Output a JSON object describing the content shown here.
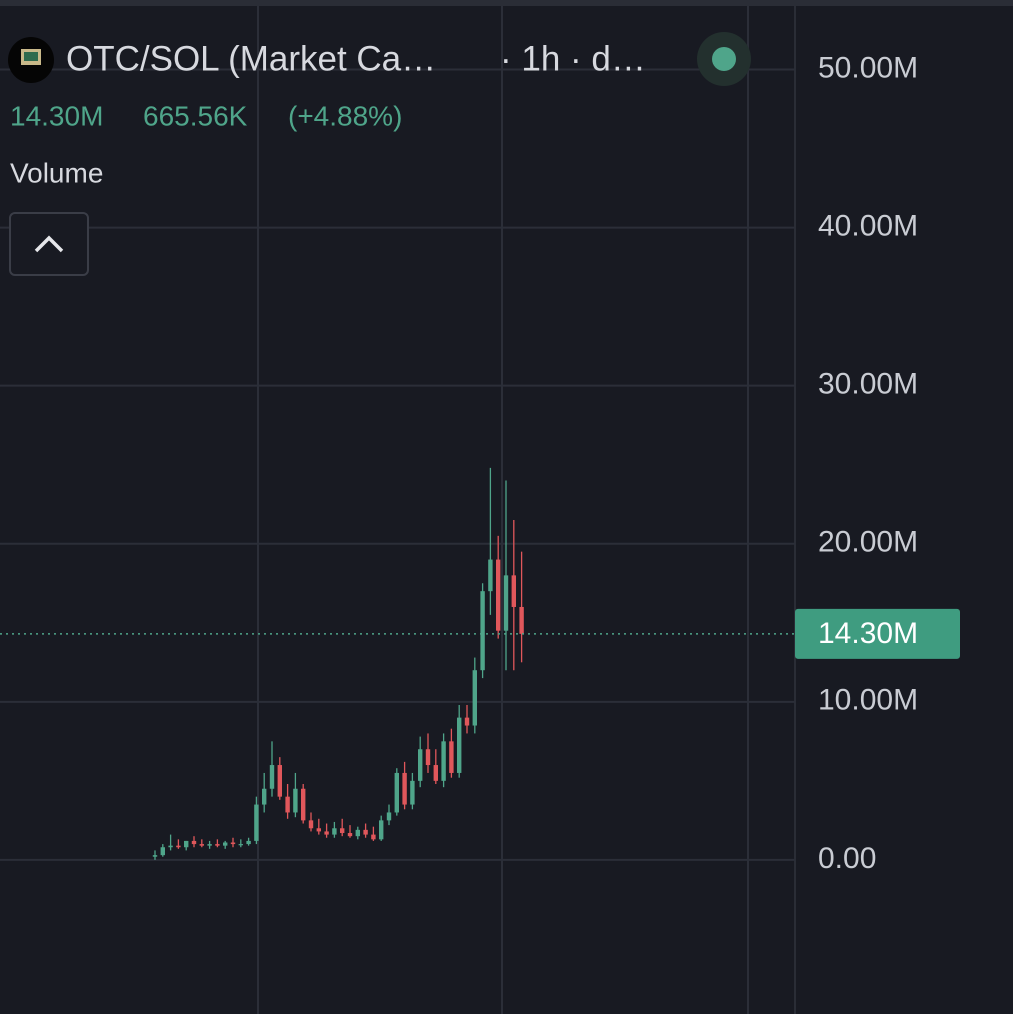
{
  "chart_data": {
    "type": "candlestick",
    "title": "OTC/SOL (Market Ca…",
    "interval": "· 1h · d…",
    "last_value": "14.30M",
    "change": "665.56K",
    "change_pct": "(+4.88%)",
    "volume_label": "Volume",
    "up_color": "#4fa58a",
    "down_color": "#e0575b",
    "ylim": [
      -9.75,
      54.4
    ],
    "yticks": [
      {
        "value": 0,
        "label": "0.00"
      },
      {
        "value": 10,
        "label": "10.00M"
      },
      {
        "value": 20,
        "label": "20.00M"
      },
      {
        "value": 30,
        "label": "30.00M"
      },
      {
        "value": 40,
        "label": "40.00M"
      },
      {
        "value": 50,
        "label": "50.00M"
      }
    ],
    "price_line": {
      "value": 14.3,
      "label": "14.30M"
    },
    "grid": true,
    "open": [
      0.2,
      0.3,
      0.8,
      0.9,
      0.8,
      1.2,
      1.0,
      0.9,
      1.0,
      0.9,
      1.1,
      1.0,
      1.0,
      1.2,
      3.5,
      4.5,
      6.0,
      4.0,
      3.0,
      4.5,
      2.5,
      2.0,
      1.8,
      1.6,
      2.0,
      1.7,
      1.5,
      1.9,
      1.6,
      1.3,
      2.5,
      3.0,
      5.5,
      3.5,
      5.0,
      7.0,
      6.0,
      5.0,
      7.5,
      5.5,
      9.0,
      8.5,
      12.0,
      17.0,
      19.0,
      14.5,
      18.0,
      16.0
    ],
    "high": [
      0.6,
      1.0,
      1.6,
      1.3,
      1.2,
      1.5,
      1.3,
      1.2,
      1.3,
      1.2,
      1.4,
      1.3,
      1.4,
      4.0,
      5.5,
      7.5,
      6.5,
      4.8,
      5.5,
      4.8,
      3.0,
      2.6,
      2.3,
      2.4,
      2.6,
      2.2,
      2.1,
      2.3,
      2.1,
      2.8,
      3.5,
      5.8,
      6.2,
      5.5,
      7.8,
      8.0,
      7.0,
      8.0,
      8.3,
      9.8,
      9.8,
      12.8,
      17.5,
      24.8,
      20.5,
      24.0,
      21.5,
      19.5
    ],
    "low": [
      0.0,
      0.2,
      0.6,
      0.7,
      0.6,
      0.8,
      0.8,
      0.7,
      0.8,
      0.7,
      0.8,
      0.8,
      0.9,
      1.0,
      3.0,
      4.0,
      3.8,
      2.6,
      2.7,
      2.3,
      1.8,
      1.6,
      1.4,
      1.4,
      1.5,
      1.4,
      1.3,
      1.4,
      1.2,
      1.2,
      2.2,
      2.8,
      3.2,
      3.2,
      4.6,
      5.5,
      4.8,
      4.6,
      5.2,
      5.2,
      8.0,
      8.0,
      11.5,
      15.5,
      14.0,
      12.0,
      12.0,
      12.5
    ],
    "close": [
      0.3,
      0.8,
      0.9,
      0.8,
      1.2,
      1.0,
      0.9,
      1.0,
      0.9,
      1.1,
      1.0,
      1.0,
      1.2,
      3.5,
      4.5,
      6.0,
      4.0,
      3.0,
      4.5,
      2.5,
      2.0,
      1.8,
      1.6,
      2.0,
      1.7,
      1.5,
      1.9,
      1.6,
      1.3,
      2.5,
      3.0,
      5.5,
      3.5,
      5.0,
      7.0,
      6.0,
      5.0,
      7.5,
      5.5,
      9.0,
      8.5,
      12.0,
      17.0,
      19.0,
      14.5,
      18.0,
      16.0,
      14.3
    ]
  }
}
